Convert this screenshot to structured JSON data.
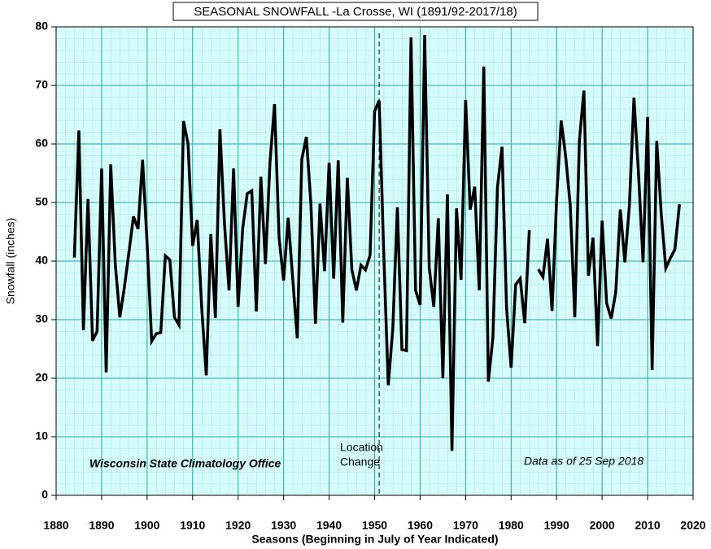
{
  "chart_data": {
    "type": "line",
    "title": "SEASONAL SNOWFALL -La Crosse, WI (1891/92-2017/18)",
    "xlabel": "Seasons (Beginning in July of Year Indicated)",
    "ylabel": "Snowfall  (inches)",
    "annotations": {
      "source": "Wisconsin State Climatology Office",
      "asof": "Data as of 25 Sep 2018",
      "location_change": [
        "Location",
        "Change"
      ],
      "location_change_year": 1951
    },
    "x": [
      1884,
      1885,
      1886,
      1887,
      1888,
      1889,
      1890,
      1891,
      1892,
      1893,
      1894,
      1895,
      1896,
      1897,
      1898,
      1899,
      1900,
      1901,
      1902,
      1903,
      1904,
      1905,
      1906,
      1907,
      1908,
      1909,
      1910,
      1911,
      1912,
      1913,
      1914,
      1915,
      1916,
      1917,
      1918,
      1919,
      1920,
      1921,
      1922,
      1923,
      1924,
      1925,
      1926,
      1927,
      1928,
      1929,
      1930,
      1931,
      1932,
      1933,
      1934,
      1935,
      1936,
      1937,
      1938,
      1939,
      1940,
      1941,
      1942,
      1943,
      1944,
      1945,
      1946,
      1947,
      1948,
      1949,
      1950,
      1951,
      1952,
      1953,
      1954,
      1955,
      1956,
      1957,
      1958,
      1959,
      1960,
      1961,
      1962,
      1963,
      1964,
      1965,
      1966,
      1967,
      1968,
      1969,
      1970,
      1971,
      1972,
      1973,
      1974,
      1975,
      1976,
      1977,
      1978,
      1979,
      1980,
      1981,
      1982,
      1983,
      1984,
      1985,
      1986,
      1987,
      1988,
      1989,
      1990,
      1991,
      1992,
      1993,
      1994,
      1995,
      1996,
      1997,
      1998,
      1999,
      2000,
      2001,
      2002,
      2003,
      2004,
      2005,
      2006,
      2007,
      2008,
      2009,
      2010,
      2011,
      2012,
      2013,
      2014,
      2015,
      2016,
      2017
    ],
    "series": [
      {
        "name": "Snowfall",
        "color": "#000000",
        "values": [
          40.6,
          62.3,
          28.2,
          50.6,
          26.4,
          28,
          55.8,
          21,
          56.5,
          39.5,
          30.4,
          35.5,
          41.5,
          47.6,
          45.5,
          57.3,
          43,
          26.3,
          27.6,
          27.8,
          40.9,
          40.2,
          30.4,
          29.1,
          63.9,
          60,
          42.6,
          47,
          32,
          20.5,
          44.6,
          30.3,
          62.5,
          46.4,
          35,
          55.8,
          32.2,
          45.5,
          51.5,
          52,
          31.4,
          54.4,
          39.5,
          56.8,
          66.8,
          44,
          36.7,
          47.4,
          37,
          26.8,
          57.4,
          61.2,
          49.7,
          29.3,
          49.8,
          38.3,
          56.8,
          37,
          57.2,
          29.5,
          54.2,
          38.5,
          35,
          39.3,
          38.5,
          41,
          65.6,
          67.4,
          41.5,
          18.8,
          28.5,
          49.2,
          24.9,
          24.7,
          78.2,
          35,
          32.5,
          78.6,
          38.9,
          32.2,
          47.3,
          20,
          51.4,
          7.6,
          49,
          36.8,
          67.5,
          48.8,
          52.7,
          35,
          73.2,
          19.4,
          27,
          52.6,
          59.5,
          32,
          21.8,
          36,
          37,
          29.4,
          45.3,
          null,
          38.6,
          37.3,
          43.8,
          31.5,
          50.5,
          64,
          57.8,
          49.5,
          30.4,
          60.5,
          69.1,
          37.5,
          44,
          25.5,
          46.9,
          32.8,
          30.2,
          34.7,
          48.8,
          39.8,
          49.5,
          67.9,
          55,
          39.8,
          64.6,
          21.4,
          60.5,
          48,
          38.8,
          40.5,
          42,
          49.7
        ]
      }
    ],
    "xlim": [
      1880,
      2020
    ],
    "xticks": [
      1880,
      1890,
      1900,
      1910,
      1920,
      1930,
      1940,
      1950,
      1960,
      1970,
      1980,
      1990,
      2000,
      2010,
      2020
    ],
    "ylim": [
      0,
      80
    ],
    "yticks": [
      0,
      10,
      20,
      30,
      40,
      50,
      60,
      70,
      80
    ],
    "grid": true
  }
}
